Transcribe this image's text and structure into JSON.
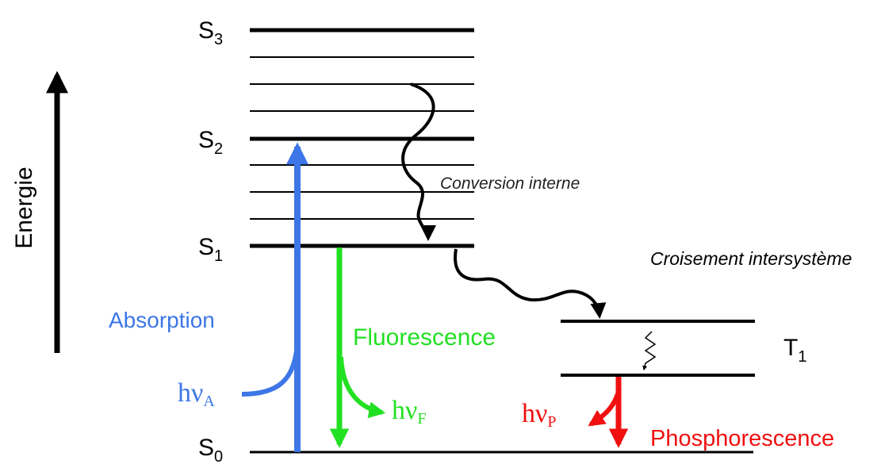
{
  "energy_axis": {
    "label": "Energie"
  },
  "levels": [
    {
      "label": "S",
      "sub": "3"
    },
    {
      "label": "S",
      "sub": "2"
    },
    {
      "label": "S",
      "sub": "1"
    },
    {
      "label": "S",
      "sub": "0"
    }
  ],
  "triplet": {
    "label": "T",
    "sub": "1"
  },
  "processes": {
    "absorption": "Absorption",
    "fluorescence": "Fluorescence",
    "internal_conversion": "Conversion interne",
    "intersystem_crossing": "Croisement intersystème",
    "phosphorescence": "Phosphorescence"
  },
  "photons": [
    {
      "label": "hν",
      "sub": "A"
    },
    {
      "label": "hν",
      "sub": "F"
    },
    {
      "label": "hν",
      "sub": "P"
    }
  ]
}
